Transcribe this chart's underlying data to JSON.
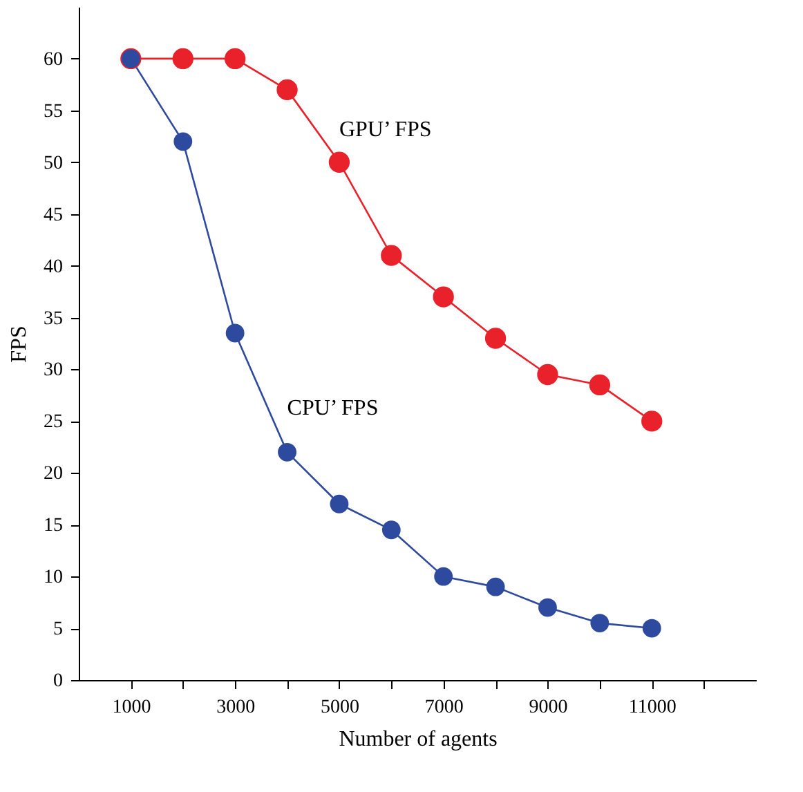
{
  "chart_data": {
    "type": "line",
    "xlabel": "Number of agents",
    "ylabel": "FPS",
    "x": [
      1000,
      2000,
      3000,
      4000,
      5000,
      6000,
      7000,
      8000,
      9000,
      10000,
      11000
    ],
    "series": [
      {
        "name": "GPU’ FPS",
        "color": "#e8212a",
        "values": [
          60,
          60,
          60,
          57,
          50,
          41,
          37,
          33,
          29.5,
          28.5,
          25
        ]
      },
      {
        "name": "CPU’ FPS",
        "color": "#2e4a9e",
        "values": [
          60,
          52,
          33.5,
          22,
          17,
          14.5,
          10,
          9,
          7,
          5.5,
          5
        ]
      }
    ],
    "xlim": [
      0,
      13000
    ],
    "ylim": [
      0,
      65
    ],
    "xticks": [
      1000,
      {
        "value": 2000,
        "label": null
      },
      3000,
      {
        "value": 4000,
        "label": null
      },
      5000,
      {
        "value": 6000,
        "label": null
      },
      7000,
      {
        "value": 8000,
        "label": null
      },
      9000,
      {
        "value": 10000,
        "label": null
      },
      11000,
      {
        "value": 12000,
        "label": null
      }
    ],
    "yticks": [
      0,
      5,
      10,
      15,
      20,
      25,
      30,
      35,
      40,
      45,
      50,
      55,
      60
    ],
    "grid": false,
    "legend": false,
    "marker": "circle",
    "line_style": "solid"
  }
}
